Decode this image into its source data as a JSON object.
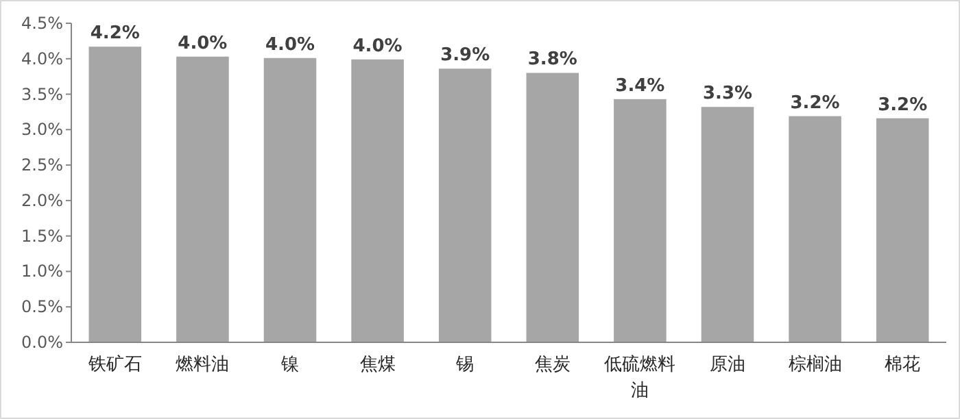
{
  "chart_data": {
    "type": "bar",
    "categories": [
      "铁矿石",
      "燃料油",
      "镍",
      "焦煤",
      "锡",
      "焦炭",
      "低硫燃料油",
      "原油",
      "棕榈油",
      "棉花"
    ],
    "values": [
      4.17,
      4.03,
      4.01,
      3.99,
      3.86,
      3.8,
      3.43,
      3.32,
      3.19,
      3.16
    ],
    "value_labels": [
      "4.2%",
      "4.0%",
      "4.0%",
      "4.0%",
      "3.9%",
      "3.8%",
      "3.4%",
      "3.3%",
      "3.2%",
      "3.2%"
    ],
    "color": "#a6a6a6",
    "ylim": [
      0,
      4.5
    ],
    "yticks": [
      {
        "value": 0,
        "label": "0.0%"
      },
      {
        "value": 0.5,
        "label": "0.5%"
      },
      {
        "value": 1,
        "label": "1.0%"
      },
      {
        "value": 1.5,
        "label": "1.5%"
      },
      {
        "value": 2,
        "label": "2.0%"
      },
      {
        "value": 2.5,
        "label": "2.5%"
      },
      {
        "value": 3,
        "label": "3.0%"
      },
      {
        "value": 3.5,
        "label": "3.5%"
      },
      {
        "value": 4,
        "label": "4.0%"
      },
      {
        "value": 4.5,
        "label": "4.5%"
      }
    ],
    "grid": false
  }
}
